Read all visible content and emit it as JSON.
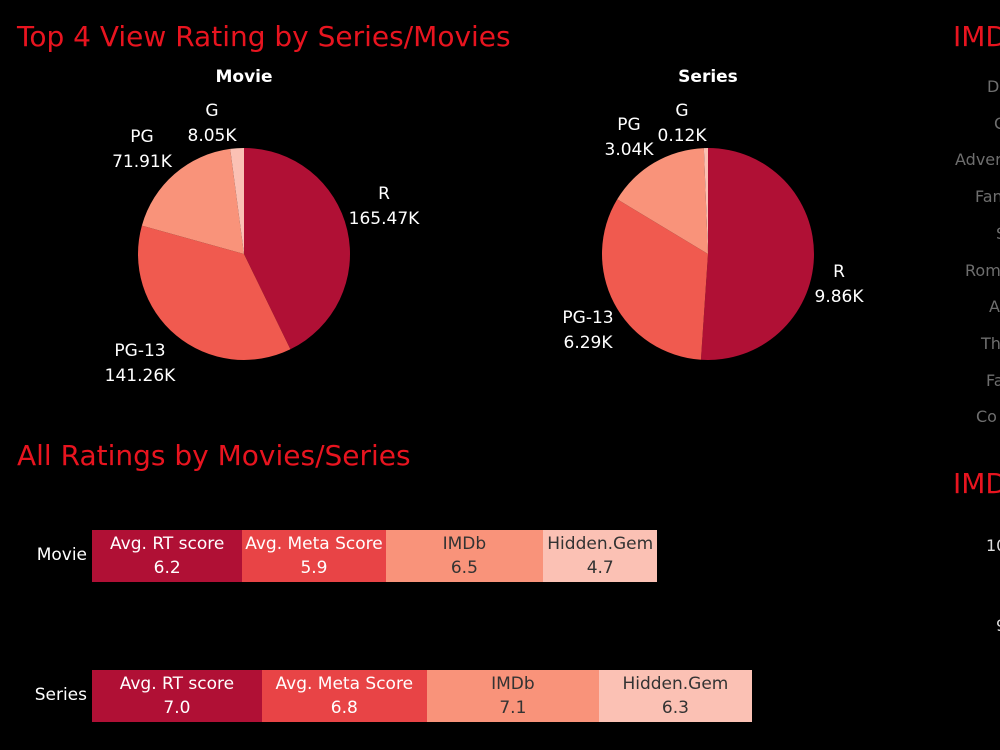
{
  "titles": {
    "pies": "Top 4 View Rating by Series/Movies",
    "bars": "All Ratings by Movies/Series",
    "side1": "IMD",
    "side2": "IMD"
  },
  "side_labels": [
    "D",
    "C",
    "Adver",
    "Fan",
    "S",
    "Rom",
    "A",
    "Th",
    "Fa",
    "Co"
  ],
  "side_axis": [
    "10",
    "9"
  ],
  "colors": {
    "R": "#b01035",
    "PG-13": "#f05a4f",
    "PG": "#f9937a",
    "G": "#fbc1b4"
  },
  "chart_data": [
    {
      "type": "pie",
      "title": "Movie",
      "slices": [
        {
          "label": "R",
          "value": 165.47,
          "display": "165.47K"
        },
        {
          "label": "PG-13",
          "value": 141.26,
          "display": "141.26K"
        },
        {
          "label": "PG",
          "value": 71.91,
          "display": "71.91K"
        },
        {
          "label": "G",
          "value": 8.05,
          "display": "8.05K"
        }
      ]
    },
    {
      "type": "pie",
      "title": "Series",
      "slices": [
        {
          "label": "R",
          "value": 9.86,
          "display": "9.86K"
        },
        {
          "label": "PG-13",
          "value": 6.29,
          "display": "6.29K"
        },
        {
          "label": "PG",
          "value": 3.04,
          "display": "3.04K"
        },
        {
          "label": "G",
          "value": 0.12,
          "display": "0.12K"
        }
      ]
    },
    {
      "type": "bar",
      "stacked": true,
      "orientation": "horizontal",
      "categories": [
        "Movie",
        "Series"
      ],
      "series": [
        {
          "name": "Avg. RT score",
          "values": [
            6.2,
            7.0
          ],
          "display": [
            "6.2",
            "7.0"
          ],
          "color": "#b01035"
        },
        {
          "name": "Avg. Meta Score",
          "values": [
            5.9,
            6.8
          ],
          "display": [
            "5.9",
            "6.8"
          ],
          "color": "#e84446"
        },
        {
          "name": "IMDb",
          "values": [
            6.5,
            7.1
          ],
          "display": [
            "6.5",
            "7.1"
          ],
          "color": "#f9937a"
        },
        {
          "name": "Hidden.Gem",
          "values": [
            4.7,
            6.3
          ],
          "display": [
            "4.7",
            "6.3"
          ],
          "color": "#fbc1b4"
        }
      ]
    }
  ]
}
